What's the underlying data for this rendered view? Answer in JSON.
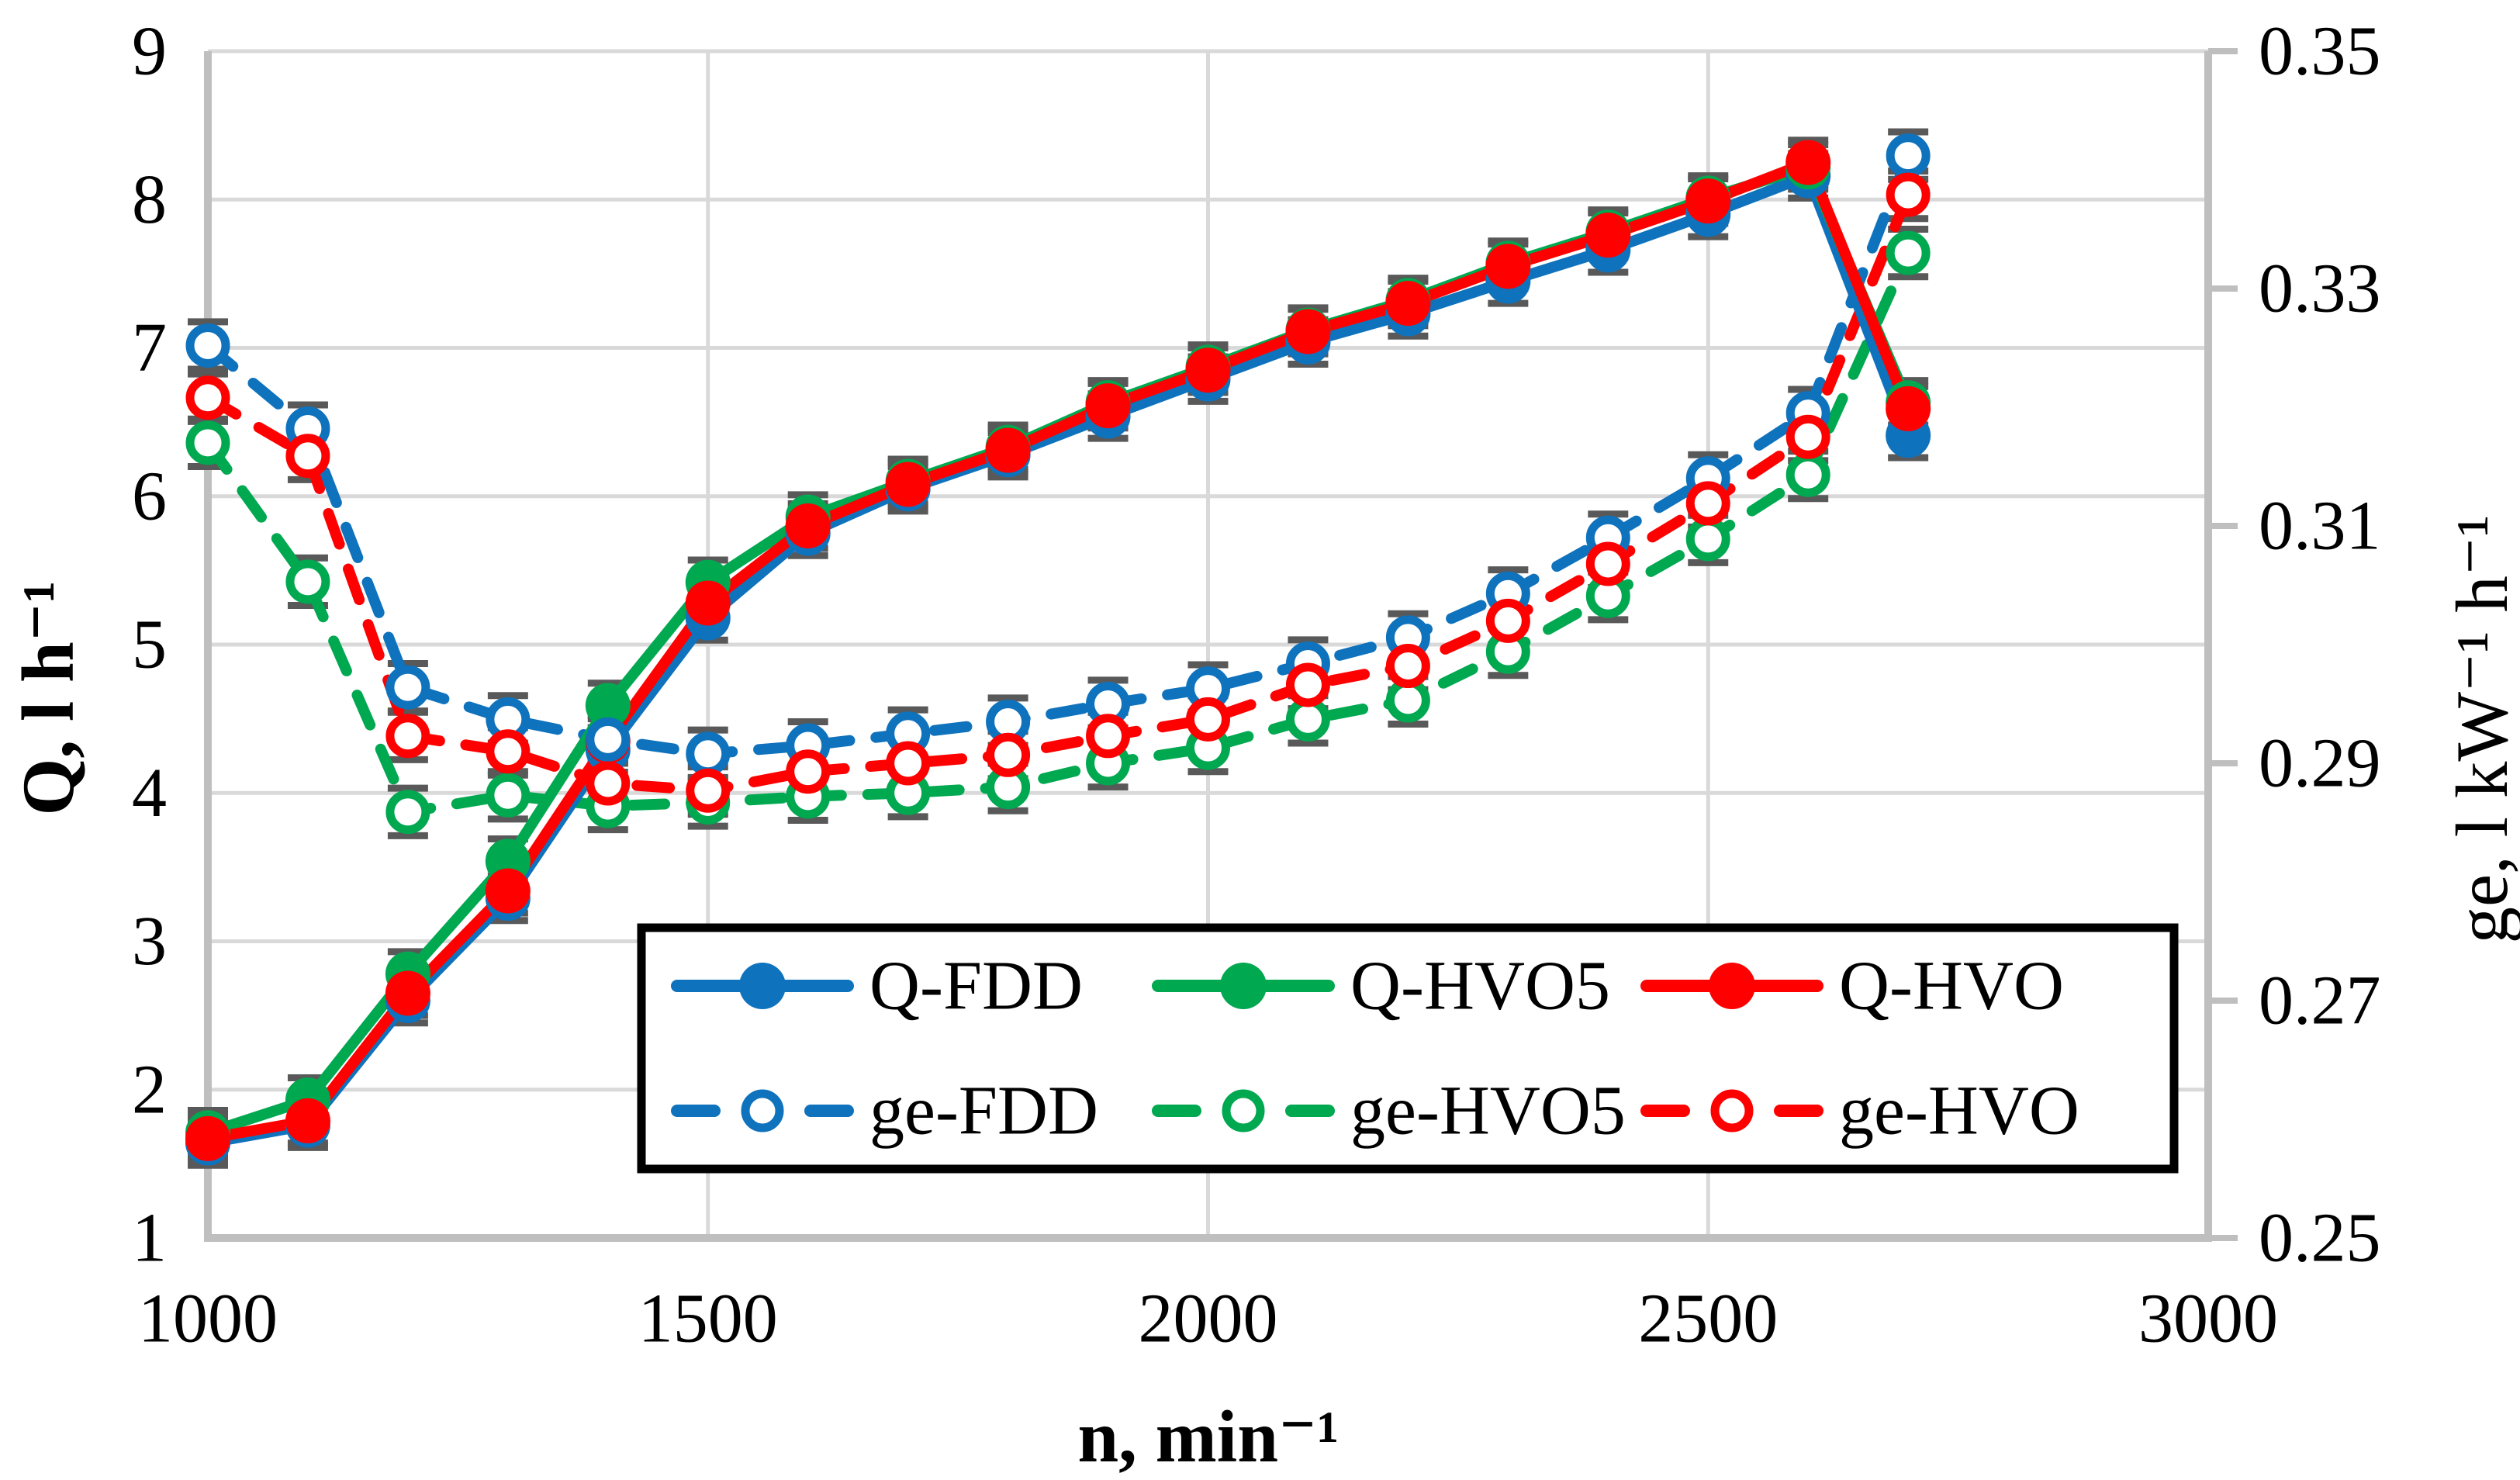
{
  "chart_data": {
    "type": "line",
    "title": "",
    "xlabel": "n, min⁻¹",
    "ylabel_left": "Q, l h⁻¹",
    "ylabel_right": "ge, l kW⁻¹ h⁻¹",
    "x_axis": {
      "min": 1000,
      "max": 3000,
      "ticks": [
        1000,
        1500,
        2000,
        2500,
        3000
      ]
    },
    "y_left_axis": {
      "min": 1,
      "max": 9,
      "ticks": [
        1,
        2,
        3,
        4,
        5,
        6,
        7,
        8,
        9
      ]
    },
    "y_right_axis": {
      "min": 0.25,
      "max": 0.35,
      "ticks": [
        0.25,
        0.27,
        0.29,
        0.31,
        0.33,
        0.35
      ]
    },
    "grid": {
      "horizontal": true,
      "vertical": true
    },
    "x": [
      1000,
      1100,
      1200,
      1300,
      1400,
      1500,
      1600,
      1700,
      1800,
      1900,
      2000,
      2100,
      2200,
      2300,
      2400,
      2500,
      2600,
      2700
    ],
    "series": [
      {
        "name": "Q-FDD",
        "axis": "left",
        "line": "solid",
        "marker": "filled",
        "color": "#0F72BD",
        "values": [
          1.64,
          1.76,
          2.6,
          3.29,
          4.29,
          5.18,
          5.75,
          6.05,
          6.28,
          6.54,
          6.79,
          7.04,
          7.23,
          7.45,
          7.66,
          7.9,
          8.16,
          6.41
        ]
      },
      {
        "name": "Q-HVO5",
        "axis": "left",
        "line": "solid",
        "marker": "filled",
        "color": "#00A850",
        "values": [
          1.71,
          1.93,
          2.78,
          3.54,
          4.59,
          5.42,
          5.86,
          6.1,
          6.33,
          6.63,
          6.87,
          7.12,
          7.32,
          7.57,
          7.78,
          8.01,
          8.22,
          6.63
        ]
      },
      {
        "name": "Q-HVO",
        "axis": "left",
        "line": "solid",
        "marker": "filled",
        "color": "#FF0000",
        "values": [
          1.67,
          1.79,
          2.65,
          3.34,
          4.35,
          5.28,
          5.8,
          6.08,
          6.31,
          6.61,
          6.85,
          7.11,
          7.3,
          7.55,
          7.76,
          7.99,
          8.25,
          6.59
        ]
      },
      {
        "name": "ge-FDD",
        "axis": "right",
        "line": "dashed",
        "marker": "open",
        "color": "#0F72BD",
        "values": [
          0.3252,
          0.3182,
          0.2964,
          0.2937,
          0.292,
          0.2908,
          0.2915,
          0.2925,
          0.2935,
          0.295,
          0.2963,
          0.2984,
          0.3006,
          0.3043,
          0.309,
          0.314,
          0.3195,
          0.3412
        ]
      },
      {
        "name": "ge-HVO5",
        "axis": "right",
        "line": "dashed",
        "marker": "open",
        "color": "#00A850",
        "values": [
          0.317,
          0.3053,
          0.2859,
          0.2873,
          0.2864,
          0.2867,
          0.2872,
          0.2875,
          0.288,
          0.29,
          0.2913,
          0.2937,
          0.2953,
          0.2994,
          0.3041,
          0.3089,
          0.3143,
          0.333
        ]
      },
      {
        "name": "ge-HVO",
        "axis": "right",
        "line": "dashed",
        "marker": "open",
        "color": "#FF0000",
        "values": [
          0.3208,
          0.3159,
          0.2923,
          0.291,
          0.2883,
          0.2877,
          0.2893,
          0.29,
          0.2907,
          0.2923,
          0.2937,
          0.2966,
          0.2982,
          0.302,
          0.3068,
          0.3119,
          0.3175,
          0.3379
        ]
      }
    ],
    "error_bars": {
      "left_half": 0.15,
      "right_half": 0.002,
      "color": "#595959"
    },
    "legend": {
      "position": "inside-bottom-center-box",
      "rows": [
        [
          "Q-FDD",
          "Q-HVO5",
          "Q-HVO"
        ],
        [
          "ge-FDD",
          "ge-HVO5",
          "ge-HVO"
        ]
      ]
    },
    "colors": {
      "gridline": "#D9D9D9",
      "axis": "#BFBFBF",
      "text": "#000000",
      "legend_border": "#000000"
    }
  }
}
